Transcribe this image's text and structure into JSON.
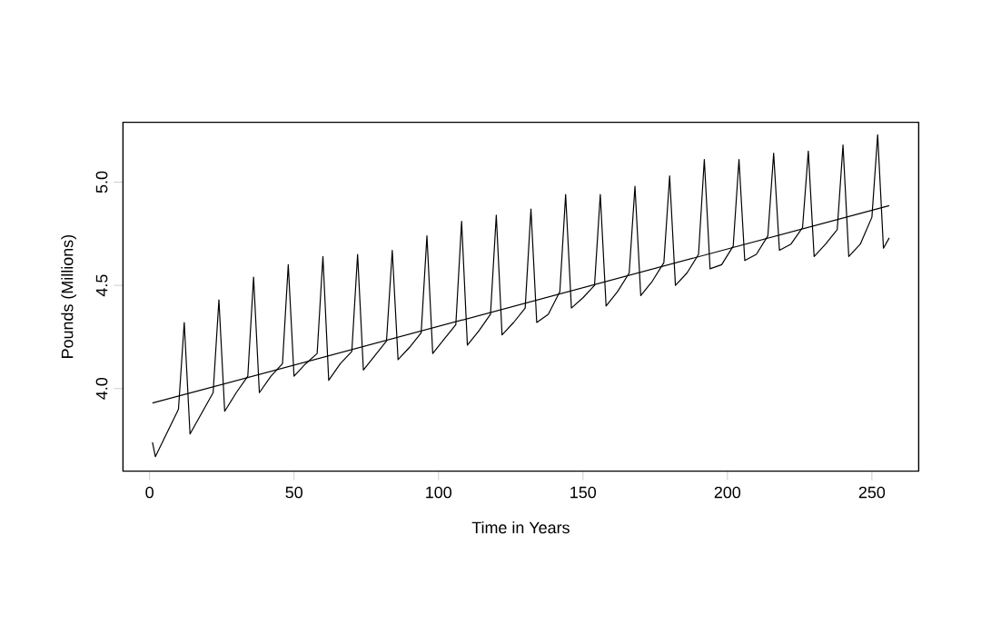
{
  "chart_data": {
    "type": "line",
    "xlabel": "Time in Years",
    "ylabel": "Pounds (Millions)",
    "xlim": [
      -9.2,
      266.2
    ],
    "ylim": [
      3.6,
      5.29
    ],
    "xticks": [
      0,
      50,
      100,
      150,
      200,
      250
    ],
    "yticks": [
      {
        "value": 4,
        "label": "4.0"
      },
      {
        "value": 4.5,
        "label": "4.5"
      },
      {
        "value": 5,
        "label": "5.0"
      }
    ],
    "series": [
      {
        "color": "#000000",
        "x": [
          1,
          2,
          10,
          12,
          14,
          18,
          22,
          24,
          26,
          30,
          34,
          36,
          38,
          42,
          46,
          48,
          50,
          54,
          58,
          60,
          62,
          66,
          70,
          72,
          74,
          78,
          82,
          84,
          86,
          90,
          94,
          96,
          98,
          102,
          106,
          108,
          110,
          114,
          118,
          120,
          122,
          126,
          130,
          132,
          134,
          138,
          142,
          144,
          146,
          150,
          154,
          156,
          158,
          162,
          166,
          168,
          170,
          174,
          178,
          180,
          182,
          186,
          190,
          192,
          194,
          198,
          202,
          204,
          206,
          210,
          214,
          216,
          218,
          222,
          226,
          228,
          230,
          234,
          238,
          240,
          242,
          246,
          250,
          252,
          254,
          256
        ],
        "values": [
          3.74,
          3.67,
          3.9,
          4.32,
          3.78,
          3.88,
          3.98,
          4.43,
          3.89,
          3.98,
          4.06,
          4.54,
          3.98,
          4.06,
          4.12,
          4.6,
          4.06,
          4.12,
          4.17,
          4.64,
          4.04,
          4.12,
          4.18,
          4.65,
          4.09,
          4.16,
          4.23,
          4.67,
          4.14,
          4.2,
          4.27,
          4.74,
          4.17,
          4.24,
          4.31,
          4.81,
          4.21,
          4.28,
          4.36,
          4.84,
          4.26,
          4.32,
          4.39,
          4.87,
          4.32,
          4.36,
          4.47,
          4.94,
          4.39,
          4.44,
          4.5,
          4.94,
          4.4,
          4.47,
          4.56,
          4.98,
          4.45,
          4.52,
          4.61,
          5.03,
          4.5,
          4.56,
          4.65,
          5.11,
          4.58,
          4.6,
          4.69,
          5.11,
          4.62,
          4.65,
          4.74,
          5.14,
          4.67,
          4.7,
          4.78,
          5.15,
          4.64,
          4.7,
          4.77,
          5.18,
          4.64,
          4.7,
          4.83,
          5.23,
          4.68,
          4.73
        ]
      },
      {
        "type": "line",
        "color": "#000000",
        "x": [
          1,
          256
        ],
        "values": [
          3.93,
          4.886
        ]
      }
    ]
  }
}
